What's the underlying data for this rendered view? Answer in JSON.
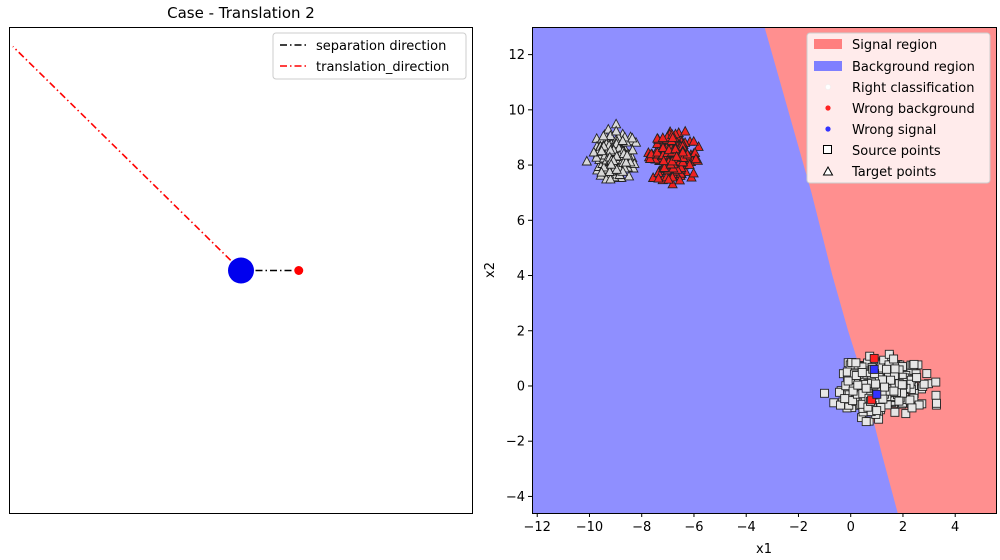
{
  "chart_data": [
    {
      "type": "line",
      "title": "Case - Translation 2",
      "xlabel": "",
      "ylabel": "",
      "xlim": [
        -4.0,
        4.0
      ],
      "ylim": [
        -4.2,
        4.2
      ],
      "grid": false,
      "axis_ticks": false,
      "legend_position": "top-right",
      "series": [
        {
          "name": "separation direction",
          "x": [
            0.0,
            1.0
          ],
          "y": [
            0.0,
            0.0
          ],
          "color": "#000000",
          "style": "dashdot"
        },
        {
          "name": "translation_direction",
          "x": [
            0.0,
            -3.95
          ],
          "y": [
            0.0,
            3.88
          ],
          "color": "#ff0000",
          "style": "dashdot"
        }
      ],
      "markers": [
        {
          "x": 0.0,
          "y": 0.0,
          "color": "#0000ee",
          "size": "large"
        },
        {
          "x": 1.0,
          "y": 0.0,
          "color": "#ff0000",
          "size": "small"
        }
      ]
    },
    {
      "type": "scatter",
      "title": "",
      "xlabel": "x1",
      "ylabel": "x2",
      "xlim": [
        -12.2,
        5.6
      ],
      "ylim": [
        -4.6,
        13.0
      ],
      "xticks": [
        -12,
        -10,
        -8,
        -6,
        -4,
        -2,
        0,
        2,
        4
      ],
      "yticks": [
        -4,
        -2,
        0,
        2,
        4,
        6,
        8,
        10,
        12
      ],
      "grid": false,
      "legend_position": "top-right",
      "regions": [
        {
          "name": "Signal region",
          "color": "#ff8080"
        },
        {
          "name": "Background region",
          "color": "#8080ff"
        }
      ],
      "decision_boundary": {
        "x": [
          -3.3,
          -2.4,
          -1.5,
          -0.7,
          -0.1,
          0.4,
          0.8,
          1.2,
          1.8
        ],
        "y": [
          13.0,
          10.0,
          7.0,
          4.0,
          2.0,
          0.5,
          -1.0,
          -2.5,
          -4.6
        ]
      },
      "legend_markers": [
        {
          "name": "Right classification",
          "color": "#ffffff",
          "shape": "dot"
        },
        {
          "name": "Wrong background",
          "color": "#ff2222",
          "shape": "dot"
        },
        {
          "name": "Wrong signal",
          "color": "#3333ff",
          "shape": "dot"
        },
        {
          "name": "Source points",
          "shape": "square"
        },
        {
          "name": "Target points",
          "shape": "triangle"
        }
      ],
      "clusters": [
        {
          "series": "Source points",
          "center": [
            1.1,
            0.0
          ],
          "spread": [
            1.0,
            0.65
          ],
          "count": 420
        },
        {
          "series": "Target points",
          "center": [
            -6.8,
            8.3
          ],
          "spread": [
            0.55,
            0.55
          ],
          "count": 230,
          "fill": "#ee2222"
        },
        {
          "series": "Target points",
          "center": [
            -9.0,
            8.3
          ],
          "spread": [
            0.55,
            0.55
          ],
          "count": 230,
          "fill": "#d8d8d8"
        }
      ],
      "misclassified_points": [
        {
          "x": 0.9,
          "y": 1.0,
          "kind": "Wrong background"
        },
        {
          "x": 0.8,
          "y": -0.5,
          "kind": "Wrong background"
        },
        {
          "x": 0.9,
          "y": 0.6,
          "kind": "Wrong signal"
        },
        {
          "x": 1.0,
          "y": -0.3,
          "kind": "Wrong signal"
        }
      ]
    }
  ]
}
